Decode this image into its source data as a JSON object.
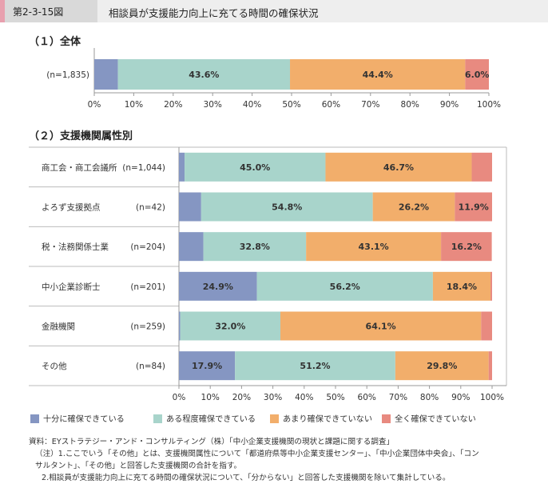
{
  "header": {
    "figure_no": "第2-3-15図",
    "title": "相談員が支援能力向上に充てる時間の確保状況"
  },
  "colors": {
    "sufficient": "#8596c2",
    "some": "#a8d4cb",
    "little": "#f2ae6b",
    "none": "#e88a80"
  },
  "chart_data": [
    {
      "type": "bar",
      "orientation": "horizontal",
      "stacked": true,
      "title": "（１）全体",
      "categories": [
        "(n=1,835)"
      ],
      "series": [
        {
          "name": "十分に確保できている",
          "values": [
            6.0
          ]
        },
        {
          "name": "ある程度確保できている",
          "values": [
            43.6
          ]
        },
        {
          "name": "あまり確保できていない",
          "values": [
            44.4
          ]
        },
        {
          "name": "全く確保できていない",
          "values": [
            6.0
          ]
        }
      ],
      "data_labels": [
        [
          "",
          "43.6%",
          "44.4%",
          "6.0%"
        ]
      ],
      "xlim": [
        0,
        100
      ],
      "x_ticks": [
        "0%",
        "10%",
        "20%",
        "30%",
        "40%",
        "50%",
        "60%",
        "70%",
        "80%",
        "90%",
        "100%"
      ]
    },
    {
      "type": "bar",
      "orientation": "horizontal",
      "stacked": true,
      "title": "（２）支援機関属性別",
      "categories": [
        "商工会・商工会議所",
        "よろず支援拠点",
        "税・法務関係士業",
        "中小企業診断士",
        "金融機関",
        "その他"
      ],
      "category_n": [
        "(n=1,044)",
        "(n=42)",
        "(n=204)",
        "(n=201)",
        "(n=259)",
        "(n=84)"
      ],
      "series": [
        {
          "name": "十分に確保できている",
          "values": [
            1.8,
            7.1,
            7.8,
            24.9,
            0.4,
            17.9
          ]
        },
        {
          "name": "ある程度確保できている",
          "values": [
            45.0,
            54.8,
            32.8,
            56.2,
            32.0,
            51.2
          ]
        },
        {
          "name": "あまり確保できていない",
          "values": [
            46.7,
            26.2,
            43.1,
            18.4,
            64.1,
            29.8
          ]
        },
        {
          "name": "全く確保できていない",
          "values": [
            6.5,
            11.9,
            16.2,
            0.5,
            3.5,
            1.1
          ]
        }
      ],
      "data_labels": [
        [
          "",
          "45.0%",
          "46.7%",
          ""
        ],
        [
          "",
          "54.8%",
          "26.2%",
          "11.9%"
        ],
        [
          "",
          "32.8%",
          "43.1%",
          "16.2%"
        ],
        [
          "24.9%",
          "56.2%",
          "18.4%",
          ""
        ],
        [
          "",
          "32.0%",
          "64.1%",
          ""
        ],
        [
          "17.9%",
          "51.2%",
          "29.8%",
          ""
        ]
      ],
      "xlim": [
        0,
        100
      ],
      "x_ticks": [
        "0%",
        "10%",
        "20%",
        "30%",
        "40%",
        "50%",
        "60%",
        "70%",
        "80%",
        "90%",
        "100%"
      ],
      "legend_position": "bottom"
    }
  ],
  "legend": [
    "十分に確保できている",
    "ある程度確保できている",
    "あまり確保できていない",
    "全く確保できていない"
  ],
  "notes": [
    "資料：EYストラテジー・アンド・コンサルティング（株）「中小企業支援機関の現状と課題に関する調査」",
    "（注）1.ここでいう「その他」とは、支援機関属性について「都道府県等中小企業支援センター」、「中小企業団体中央会」、「コン",
    "サルタント」、「その他」と回答した支援機関の合計を指す。",
    "2.相談員が支援能力向上に充てる時間の確保状況について、「分からない」と回答した支援機関を除いて集計している。"
  ]
}
